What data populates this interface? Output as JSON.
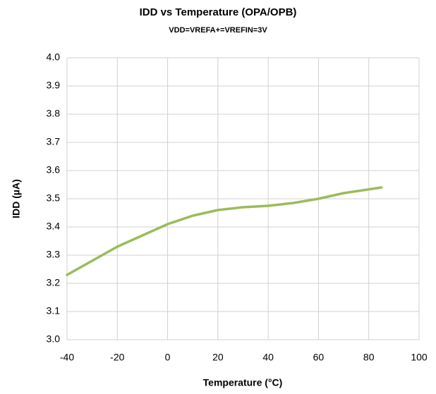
{
  "chart_data": {
    "type": "line",
    "title": "IDD vs Temperature (OPA/OPB)",
    "subtitle": "VDD=VREFA+=VREFIN=3V",
    "x_label": "Temperature (°C)",
    "y_label": "IDD (µA)",
    "x": [
      -40,
      -30,
      -20,
      -10,
      0,
      10,
      20,
      30,
      40,
      50,
      60,
      70,
      85
    ],
    "series": [
      {
        "name": "IDD",
        "color": "#9bbb59",
        "values": [
          3.23,
          3.28,
          3.33,
          3.37,
          3.41,
          3.44,
          3.46,
          3.47,
          3.475,
          3.485,
          3.5,
          3.52,
          3.54
        ]
      }
    ],
    "xlim": [
      -40,
      100
    ],
    "xticks": [
      -40,
      -20,
      0,
      20,
      40,
      60,
      80,
      100
    ],
    "ylim": [
      3,
      4
    ],
    "yticks": [
      {
        "value": 3,
        "label": "3.0"
      },
      3.1,
      3.2,
      3.3,
      3.4,
      3.5,
      3.6,
      3.7,
      3.8,
      3.9,
      {
        "value": 4,
        "label": "4.0"
      }
    ],
    "grid": true
  }
}
